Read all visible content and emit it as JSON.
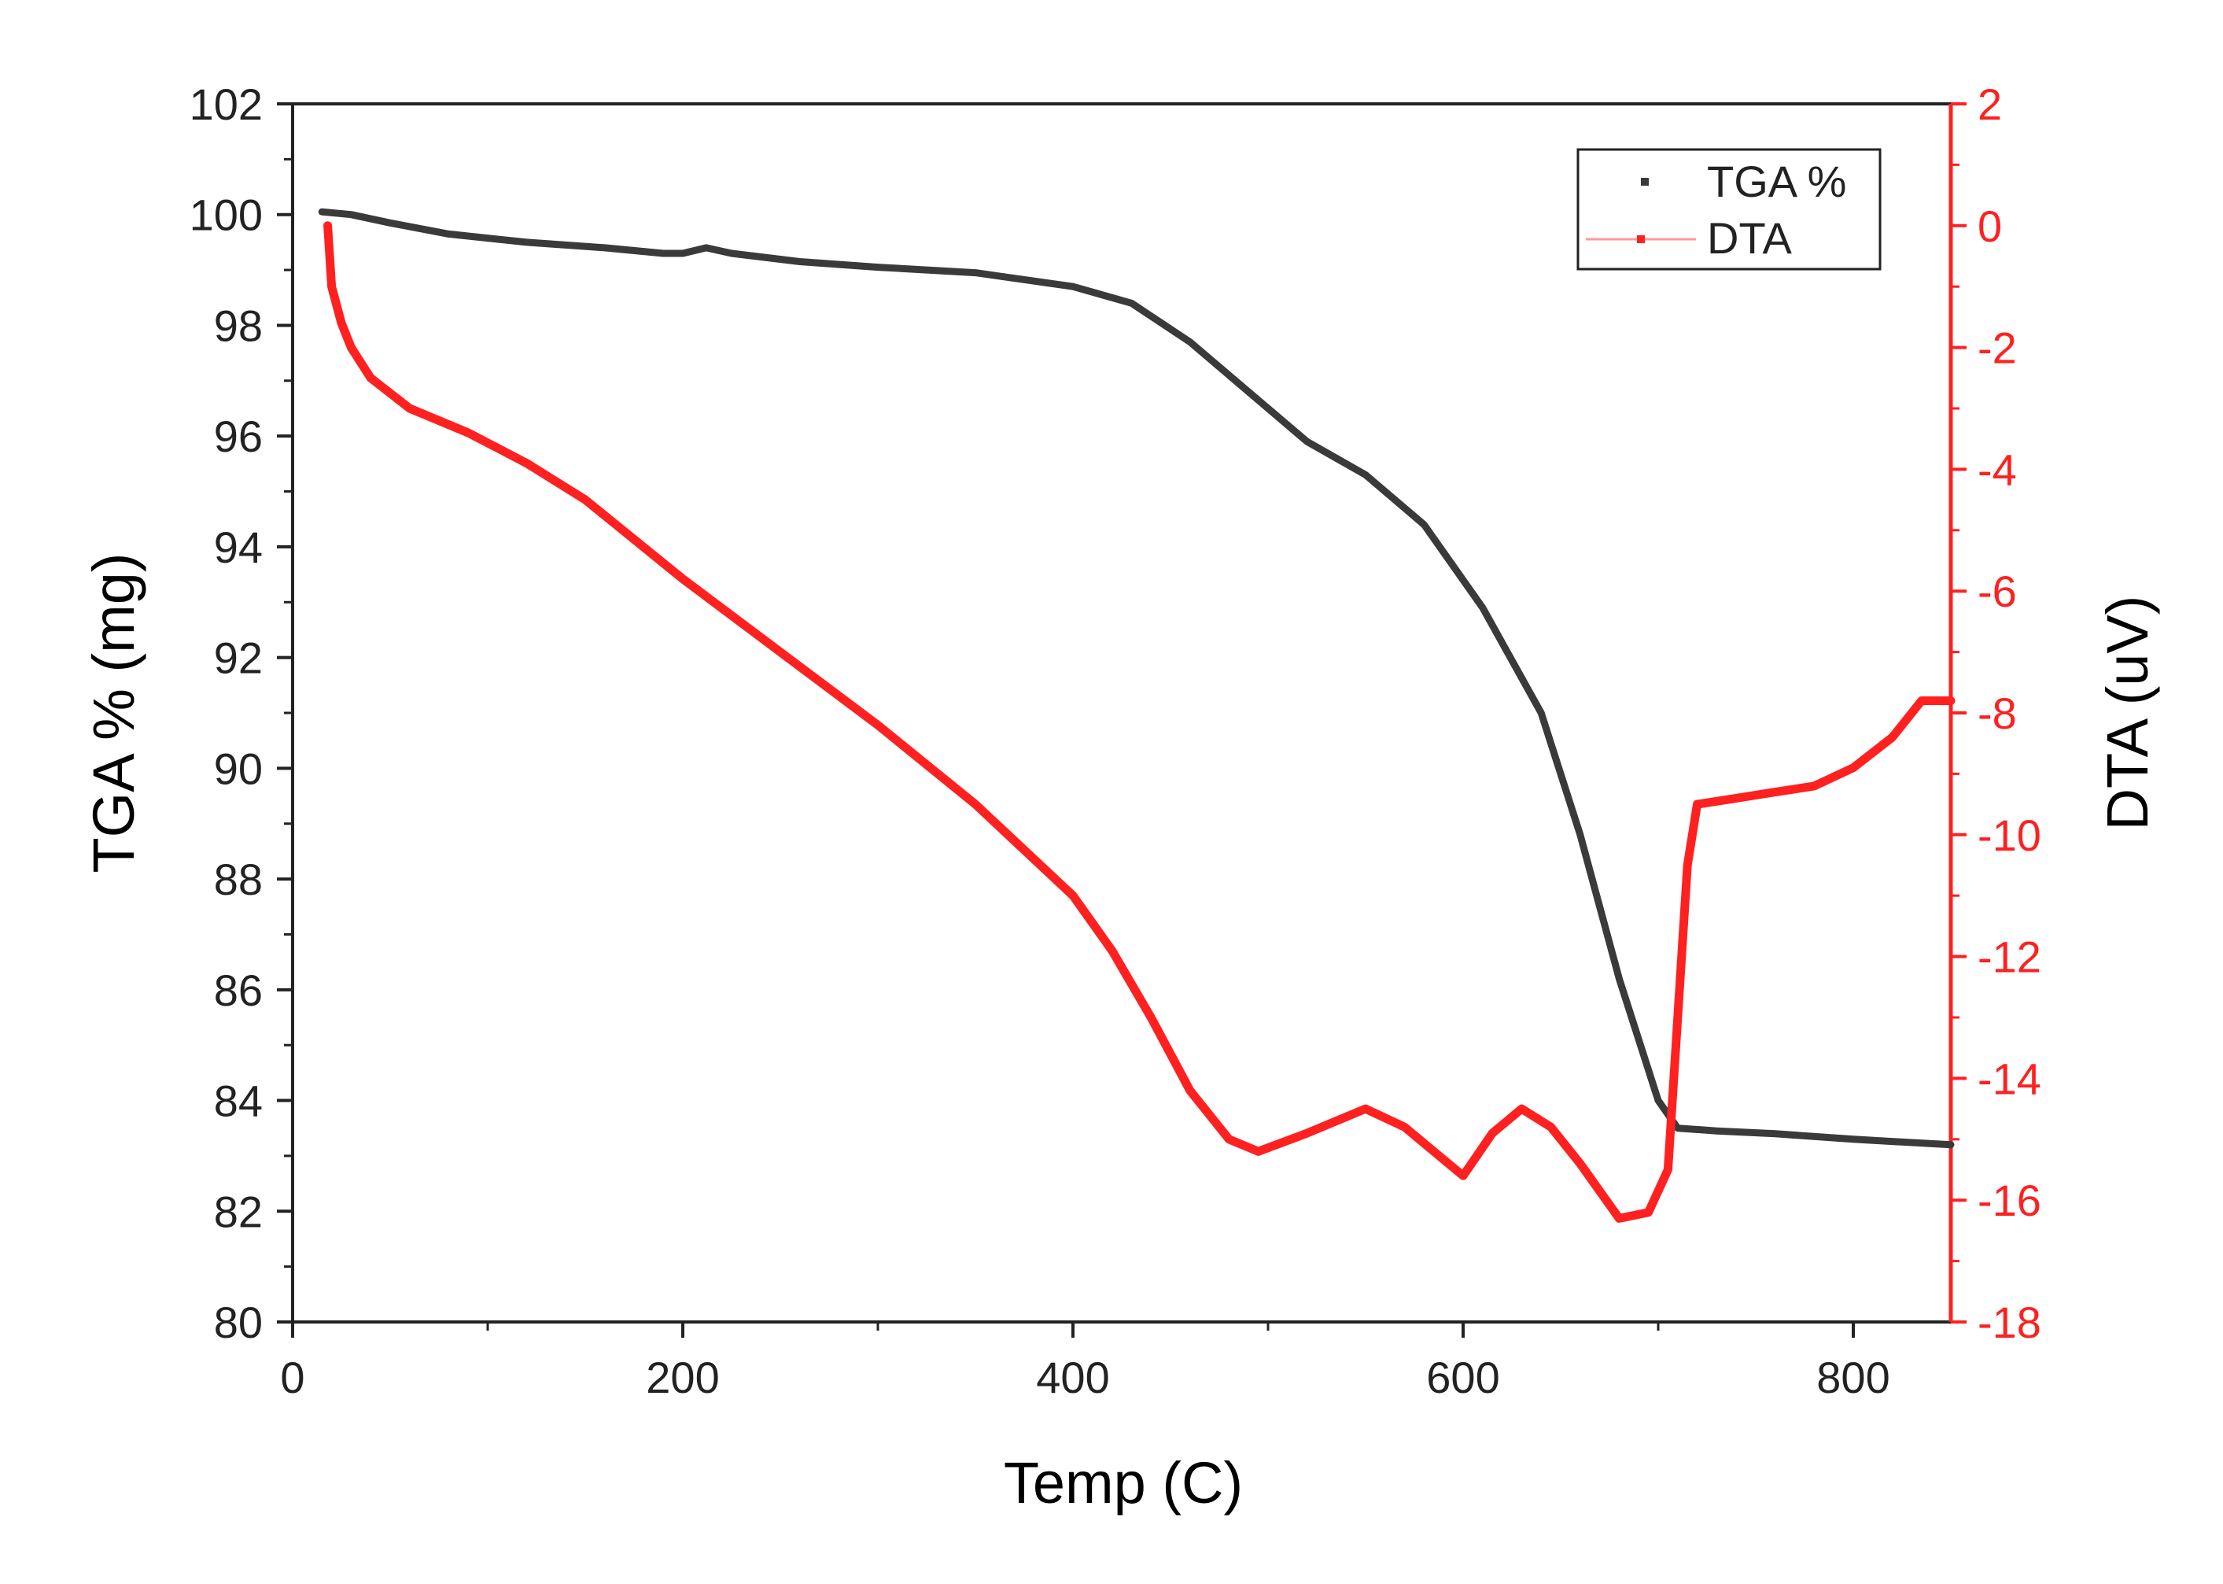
{
  "chart_data": {
    "type": "line",
    "xlabel": "Temp (C)",
    "ylabel": "TGA % (mg)",
    "y2label": "DTA (uV)",
    "xlim": [
      0,
      850
    ],
    "ylim": [
      80,
      102
    ],
    "y2lim": [
      -18,
      2
    ],
    "xticks": [
      "0",
      "200",
      "400",
      "600",
      "800"
    ],
    "yticks": [
      "80",
      "82",
      "84",
      "86",
      "88",
      "90",
      "92",
      "94",
      "96",
      "98",
      "100",
      "102"
    ],
    "y2ticks": [
      "-18",
      "-16",
      "-14",
      "-12",
      "-10",
      "-8",
      "-6",
      "-4",
      "-2",
      "0",
      "2"
    ],
    "grid": false,
    "legend_position": "top-right",
    "series": [
      {
        "name": "TGA %",
        "axis": "left",
        "color": "#3a3a3a",
        "x": [
          15,
          30,
          50,
          80,
          120,
          160,
          190,
          200,
          212,
          225,
          260,
          300,
          350,
          400,
          430,
          460,
          490,
          520,
          550,
          580,
          610,
          640,
          660,
          680,
          700,
          710,
          730,
          760,
          800,
          850
        ],
        "y": [
          100.05,
          100.0,
          99.85,
          99.65,
          99.5,
          99.4,
          99.3,
          99.3,
          99.4,
          99.3,
          99.15,
          99.05,
          98.95,
          98.7,
          98.4,
          97.7,
          96.8,
          95.9,
          95.3,
          94.4,
          92.9,
          91.0,
          88.8,
          86.2,
          84.0,
          83.5,
          83.45,
          83.4,
          83.3,
          83.2
        ]
      },
      {
        "name": "DTA",
        "axis": "right",
        "color": "#ff2020",
        "x": [
          18,
          20,
          25,
          30,
          40,
          60,
          90,
          120,
          150,
          200,
          250,
          300,
          350,
          400,
          420,
          440,
          460,
          480,
          495,
          520,
          550,
          570,
          585,
          600,
          615,
          630,
          645,
          660,
          680,
          695,
          705,
          710,
          715,
          720,
          740,
          760,
          780,
          800,
          820,
          835,
          850
        ],
        "y": [
          0,
          -1.0,
          -1.6,
          -2.0,
          -2.5,
          -3.0,
          -3.4,
          -3.9,
          -4.5,
          -5.8,
          -7.0,
          -8.2,
          -9.5,
          -11.0,
          -11.9,
          -13.0,
          -14.2,
          -15.0,
          -15.2,
          -14.9,
          -14.5,
          -14.8,
          -15.2,
          -15.6,
          -14.9,
          -14.5,
          -14.8,
          -15.4,
          -16.3,
          -16.2,
          -15.5,
          -13.0,
          -10.5,
          -9.5,
          -9.4,
          -9.3,
          -9.2,
          -8.9,
          -8.4,
          -7.8,
          -7.8
        ]
      }
    ]
  }
}
